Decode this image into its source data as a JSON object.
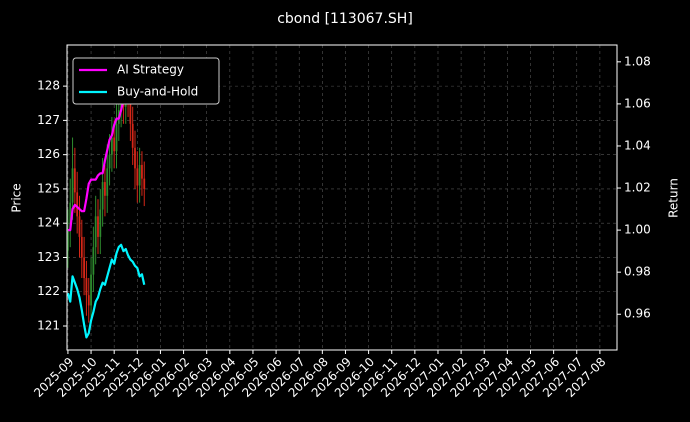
{
  "chart_data": {
    "type": "candlestick",
    "title": "cbond [113067.SH]",
    "ylabel": "Price",
    "y2label": "Return",
    "up_color": "#2e8b2e",
    "down_color": "#d62718",
    "grid": true,
    "legend": "upper left",
    "x": [
      0,
      0.1,
      0.2,
      0.3,
      0.4,
      0.5,
      0.6,
      0.7,
      0.8,
      0.9,
      1.0,
      1.1,
      1.2,
      1.3,
      1.4,
      1.5,
      1.6,
      1.7,
      1.8,
      1.9,
      2.0,
      2.1,
      2.2,
      2.3,
      2.4,
      2.5,
      2.6,
      2.7,
      2.8,
      2.9,
      3.0,
      3.1,
      3.2,
      3.3
    ],
    "open": [
      123.2,
      123.8,
      124.6,
      125.6,
      124.9,
      124.2,
      123.6,
      123.0,
      122.4,
      121.9,
      121.6,
      122.5,
      123.3,
      124.2,
      123.6,
      124.4,
      125.2,
      124.8,
      125.6,
      126.0,
      126.5,
      126.1,
      126.9,
      127.3,
      127.8,
      127.4,
      128.1,
      127.6,
      126.9,
      126.2,
      125.6,
      125.1,
      125.7,
      125.3
    ],
    "high": [
      124.4,
      125.3,
      126.5,
      126.2,
      125.5,
      124.8,
      124.1,
      123.6,
      122.9,
      122.4,
      123.0,
      123.9,
      124.8,
      124.7,
      125.0,
      125.9,
      125.7,
      126.3,
      126.6,
      127.1,
      127.0,
      127.6,
      127.9,
      128.4,
      128.3,
      128.6,
      128.5,
      128.0,
      127.4,
      126.7,
      126.1,
      126.2,
      126.1,
      125.8
    ],
    "low": [
      122.7,
      123.3,
      124.1,
      124.3,
      123.7,
      123.0,
      122.4,
      121.9,
      121.3,
      121.1,
      121.2,
      122.0,
      122.8,
      123.1,
      123.1,
      123.9,
      124.2,
      124.3,
      125.1,
      125.5,
      125.6,
      125.6,
      126.4,
      126.8,
      126.9,
      126.9,
      127.1,
      126.4,
      125.7,
      125.0,
      124.6,
      124.6,
      124.8,
      124.5
    ],
    "close": [
      123.8,
      124.6,
      125.6,
      124.9,
      124.2,
      123.6,
      123.0,
      122.4,
      121.9,
      121.6,
      122.5,
      123.3,
      124.2,
      123.6,
      124.4,
      125.2,
      124.8,
      125.6,
      126.0,
      126.5,
      126.1,
      126.9,
      127.3,
      127.8,
      127.4,
      128.1,
      127.6,
      126.9,
      126.2,
      125.6,
      125.1,
      125.7,
      125.3,
      125.0
    ],
    "series": [
      {
        "name": "AI Strategy",
        "color": "#ff00ff",
        "axis": "y2",
        "values": [
          1.0,
          1.0,
          1.01,
          1.012,
          1.011,
          1.01,
          1.009,
          1.009,
          1.015,
          1.022,
          1.024,
          1.024,
          1.024,
          1.026,
          1.027,
          1.027,
          1.033,
          1.038,
          1.043,
          1.045,
          1.05,
          1.053,
          1.053,
          1.057,
          1.062,
          1.062,
          1.068,
          1.073,
          1.078,
          1.079,
          null,
          null,
          null,
          null
        ]
      },
      {
        "name": "Buy-and-Hold",
        "color": "#00f5ff",
        "axis": "y2",
        "values": [
          0.97,
          0.966,
          0.978,
          0.975,
          0.972,
          0.968,
          0.962,
          0.955,
          0.949,
          0.951,
          0.957,
          0.961,
          0.966,
          0.968,
          0.972,
          0.975,
          0.974,
          0.978,
          0.982,
          0.986,
          0.984,
          0.989,
          0.992,
          0.993,
          0.99,
          0.991,
          0.988,
          0.986,
          0.985,
          0.983,
          0.982,
          0.978,
          0.979,
          0.974
        ]
      }
    ],
    "xlim": [
      -0.04,
      23.74
    ],
    "xticks": [
      {
        "value": 0,
        "label": "2025-09"
      },
      {
        "value": 1,
        "label": "2025-10"
      },
      {
        "value": 2,
        "label": "2025-11"
      },
      {
        "value": 3,
        "label": "2025-12"
      },
      {
        "value": 4,
        "label": "2026-01"
      },
      {
        "value": 5,
        "label": "2026-02"
      },
      {
        "value": 6,
        "label": "2026-03"
      },
      {
        "value": 7,
        "label": "2026-04"
      },
      {
        "value": 8,
        "label": "2026-05"
      },
      {
        "value": 9,
        "label": "2026-06"
      },
      {
        "value": 10,
        "label": "2026-07"
      },
      {
        "value": 11,
        "label": "2026-08"
      },
      {
        "value": 12,
        "label": "2026-09"
      },
      {
        "value": 13,
        "label": "2026-10"
      },
      {
        "value": 14,
        "label": "2026-11"
      },
      {
        "value": 15,
        "label": "2026-12"
      },
      {
        "value": 16,
        "label": "2027-01"
      },
      {
        "value": 17,
        "label": "2027-02"
      },
      {
        "value": 18,
        "label": "2027-03"
      },
      {
        "value": 19,
        "label": "2027-04"
      },
      {
        "value": 20,
        "label": "2027-05"
      },
      {
        "value": 21,
        "label": "2027-06"
      },
      {
        "value": 22,
        "label": "2027-07"
      },
      {
        "value": 23,
        "label": "2027-08"
      }
    ],
    "ylim": [
      120.3,
      129.2
    ],
    "yticks": [
      121,
      122,
      123,
      124,
      125,
      126,
      127,
      128
    ],
    "y2lim": [
      0.943,
      1.088
    ],
    "y2ticks": [
      0.96,
      0.98,
      {
        "value": 1,
        "label": "1.00"
      },
      1.02,
      1.04,
      1.06,
      1.08
    ]
  }
}
